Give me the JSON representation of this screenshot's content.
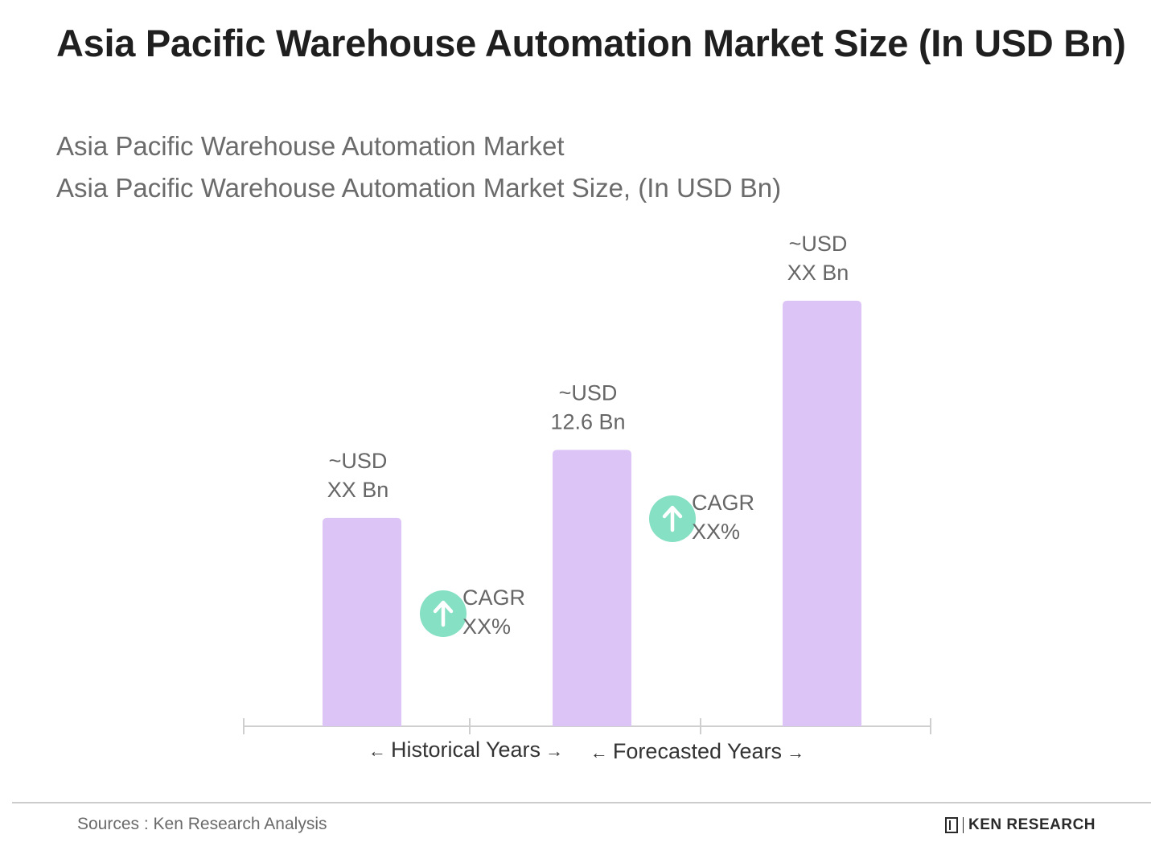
{
  "header": {
    "title": "Asia Pacific Warehouse Automation Market Size (In USD Bn)",
    "subtitle_1": "Asia Pacific Warehouse Automation Market",
    "subtitle_2": "Asia Pacific Warehouse Automation Market Size, (In USD Bn)"
  },
  "chart_data": {
    "type": "bar",
    "categories": [
      "",
      "",
      ""
    ],
    "values": [
      9.5,
      12.6,
      19.4
    ],
    "ylim": [
      0,
      22
    ],
    "bar_color": "#dcc4f6",
    "data_labels": [
      [
        "~USD",
        "XX Bn"
      ],
      [
        "~USD",
        "12.6 Bn"
      ],
      [
        "~USD",
        "XX Bn"
      ]
    ],
    "cagr_badges": [
      {
        "line1": "CAGR",
        "line2": "XX%"
      },
      {
        "line1": "CAGR",
        "line2": "XX%"
      }
    ],
    "cagr_color": "#86e0c3",
    "axis_color": "#cfcfcf",
    "period_labels": [
      {
        "left_arrow": "←",
        "text": "Historical Years",
        "right_arrow": "→"
      },
      {
        "left_arrow": "←",
        "text": "Forecasted Years",
        "right_arrow": "→"
      }
    ],
    "grid": false
  },
  "footer": {
    "source": "Sources : Ken Research Analysis",
    "brand": "KEN RESEARCH"
  }
}
